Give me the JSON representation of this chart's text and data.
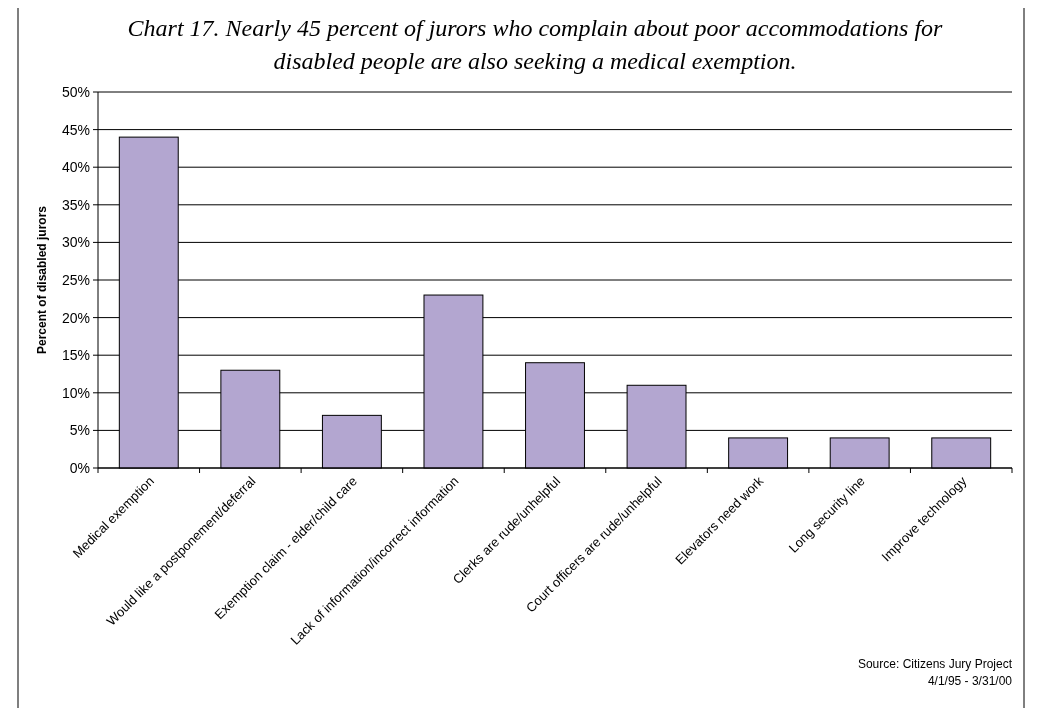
{
  "chart_data": {
    "type": "bar",
    "title": "Chart 17. Nearly 45 percent of jurors who complain about poor accommodations for disabled people are also seeking a medical exemption.",
    "ylabel": "Percent of disabled jurors",
    "categories": [
      "Medical exemption",
      "Would like a postponement/deferral",
      "Exemption claim - elder/child care",
      "Lack of information/incorrect information",
      "Clerks are rude/unhelpful",
      "Court officers are rude/unhelpful",
      "Elevators need work",
      "Long security line",
      "Improve technology"
    ],
    "values": [
      44,
      13,
      7,
      23,
      14,
      11,
      4,
      4,
      4
    ],
    "color": "#b3a6d0",
    "ylim": [
      0,
      50
    ],
    "yticks": [
      {
        "value": 0,
        "label": "0%"
      },
      {
        "value": 5,
        "label": "5%"
      },
      {
        "value": 10,
        "label": "10%"
      },
      {
        "value": 15,
        "label": "15%"
      },
      {
        "value": 20,
        "label": "20%"
      },
      {
        "value": 25,
        "label": "25%"
      },
      {
        "value": 30,
        "label": "30%"
      },
      {
        "value": 35,
        "label": "35%"
      },
      {
        "value": 40,
        "label": "40%"
      },
      {
        "value": 45,
        "label": "45%"
      },
      {
        "value": 50,
        "label": "50%"
      }
    ],
    "grid": "y",
    "annotations": [
      "Source: Citizens Jury Project",
      "4/1/95 - 3/31/00"
    ]
  }
}
